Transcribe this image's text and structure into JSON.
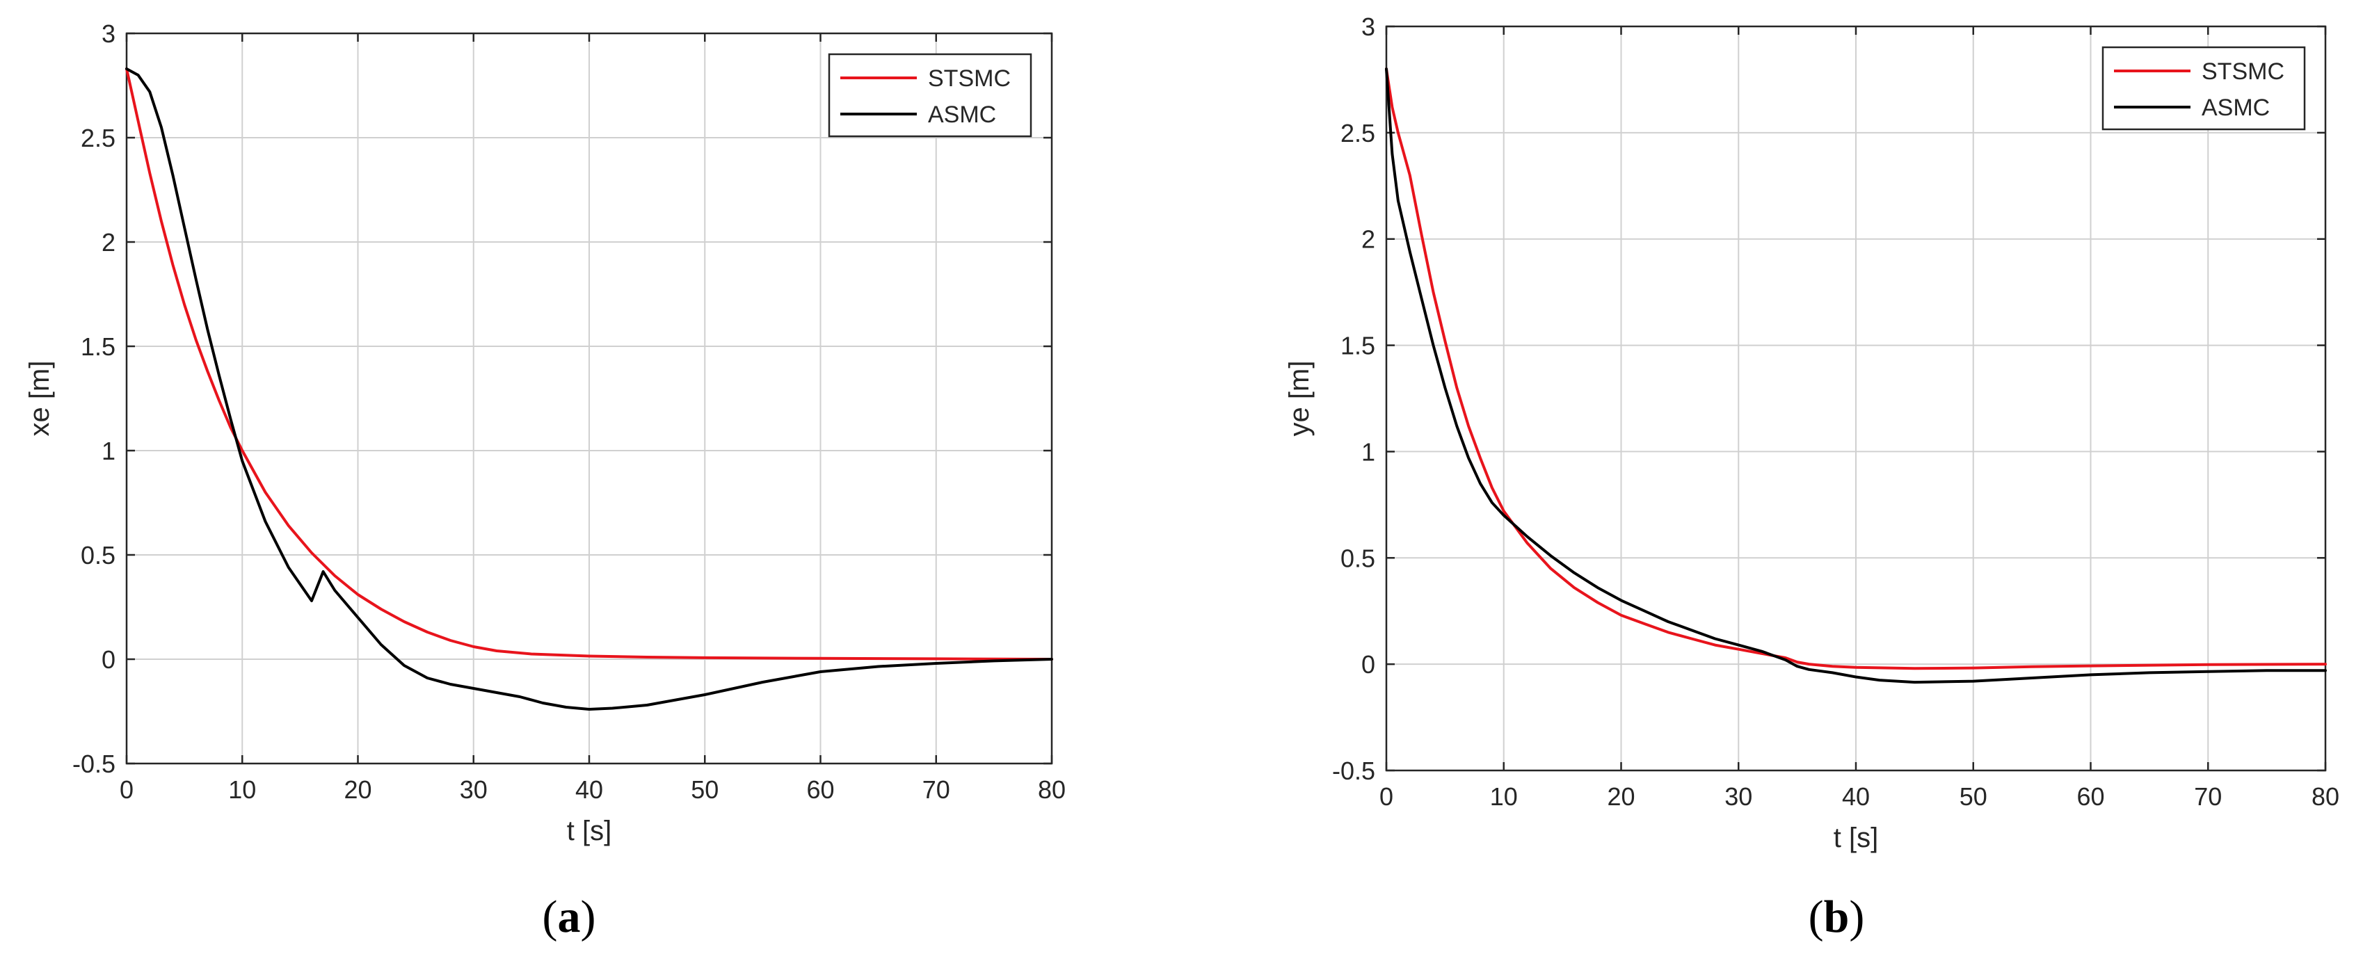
{
  "colors": {
    "STSMC": "#e8141c",
    "ASMC": "#000000",
    "grid": "#d0d0d0",
    "axis": "#262626"
  },
  "chart_data": [
    {
      "panel": "a",
      "panel_label": "(a)",
      "panel_letter": "a",
      "type": "line",
      "xlabel": "t [s]",
      "ylabel": "xe [m]",
      "xlim": [
        0,
        80
      ],
      "ylim": [
        -0.5,
        3
      ],
      "xticks": [
        0,
        10,
        20,
        30,
        40,
        50,
        60,
        70,
        80
      ],
      "yticks": [
        -0.5,
        0,
        0.5,
        1,
        1.5,
        2,
        2.5,
        3
      ],
      "xtick_labels": [
        "0",
        "10",
        "20",
        "30",
        "40",
        "50",
        "60",
        "70",
        "80"
      ],
      "ytick_labels": [
        "-0.5",
        "0",
        "0.5",
        "1",
        "1.5",
        "2",
        "2.5",
        "3"
      ],
      "grid": true,
      "legend_position": "top-right",
      "series": [
        {
          "name": "STSMC",
          "x": [
            0,
            1,
            2,
            3,
            4,
            5,
            6,
            7,
            8,
            9,
            10,
            12,
            14,
            16,
            18,
            20,
            22,
            24,
            26,
            28,
            30,
            32,
            35,
            40,
            45,
            50,
            60,
            70,
            80
          ],
          "y": [
            2.83,
            2.58,
            2.33,
            2.1,
            1.89,
            1.7,
            1.53,
            1.38,
            1.24,
            1.11,
            1.0,
            0.8,
            0.64,
            0.51,
            0.4,
            0.31,
            0.24,
            0.18,
            0.13,
            0.09,
            0.06,
            0.04,
            0.025,
            0.015,
            0.01,
            0.007,
            0.004,
            0.002,
            0.0
          ]
        },
        {
          "name": "ASMC",
          "x": [
            0,
            1,
            2,
            3,
            4,
            5,
            6,
            7,
            8,
            9,
            10,
            12,
            14,
            16,
            17,
            18,
            20,
            22,
            24,
            26,
            28,
            30,
            32,
            34,
            36,
            38,
            40,
            42,
            45,
            50,
            55,
            60,
            65,
            70,
            75,
            80
          ],
          "y": [
            2.83,
            2.8,
            2.72,
            2.55,
            2.32,
            2.07,
            1.82,
            1.58,
            1.36,
            1.15,
            0.95,
            0.66,
            0.44,
            0.28,
            0.42,
            0.33,
            0.2,
            0.07,
            -0.03,
            -0.09,
            -0.12,
            -0.14,
            -0.16,
            -0.18,
            -0.21,
            -0.23,
            -0.24,
            -0.235,
            -0.22,
            -0.17,
            -0.11,
            -0.06,
            -0.035,
            -0.02,
            -0.008,
            0.0
          ]
        }
      ]
    },
    {
      "panel": "b",
      "panel_label": "(b)",
      "panel_letter": "b",
      "type": "line",
      "xlabel": "t [s]",
      "ylabel": "ye [m]",
      "xlim": [
        0,
        80
      ],
      "ylim": [
        -0.5,
        3
      ],
      "xticks": [
        0,
        10,
        20,
        30,
        40,
        50,
        60,
        70,
        80
      ],
      "yticks": [
        -0.5,
        0,
        0.5,
        1,
        1.5,
        2,
        2.5,
        3
      ],
      "xtick_labels": [
        "0",
        "10",
        "20",
        "30",
        "40",
        "50",
        "60",
        "70",
        "80"
      ],
      "ytick_labels": [
        "-0.5",
        "0",
        "0.5",
        "1",
        "1.5",
        "2",
        "2.5",
        "3"
      ],
      "grid": true,
      "legend_position": "top-right",
      "series": [
        {
          "name": "STSMC",
          "x": [
            0,
            0.5,
            1,
            2,
            3,
            4,
            5,
            6,
            7,
            8,
            9,
            10,
            12,
            14,
            16,
            18,
            20,
            22,
            24,
            26,
            28,
            30,
            32,
            34,
            35,
            36,
            38,
            40,
            45,
            50,
            55,
            60,
            70,
            80
          ],
          "y": [
            2.8,
            2.62,
            2.5,
            2.3,
            2.02,
            1.75,
            1.52,
            1.3,
            1.12,
            0.97,
            0.83,
            0.72,
            0.57,
            0.45,
            0.36,
            0.29,
            0.23,
            0.19,
            0.15,
            0.12,
            0.09,
            0.07,
            0.05,
            0.03,
            0.01,
            0.0,
            -0.01,
            -0.015,
            -0.02,
            -0.018,
            -0.012,
            -0.008,
            -0.002,
            0.0
          ]
        },
        {
          "name": "ASMC",
          "x": [
            0,
            0.5,
            1,
            2,
            3,
            4,
            5,
            6,
            7,
            8,
            9,
            10,
            12,
            14,
            16,
            18,
            20,
            22,
            24,
            26,
            28,
            30,
            32,
            34,
            35,
            36,
            38,
            40,
            42,
            45,
            50,
            55,
            60,
            65,
            70,
            75,
            80
          ],
          "y": [
            2.8,
            2.4,
            2.18,
            1.94,
            1.72,
            1.5,
            1.3,
            1.12,
            0.97,
            0.85,
            0.76,
            0.7,
            0.6,
            0.51,
            0.43,
            0.36,
            0.3,
            0.25,
            0.2,
            0.16,
            0.12,
            0.09,
            0.06,
            0.02,
            -0.01,
            -0.025,
            -0.04,
            -0.06,
            -0.075,
            -0.085,
            -0.08,
            -0.065,
            -0.05,
            -0.04,
            -0.035,
            -0.03,
            -0.03
          ]
        }
      ]
    }
  ]
}
